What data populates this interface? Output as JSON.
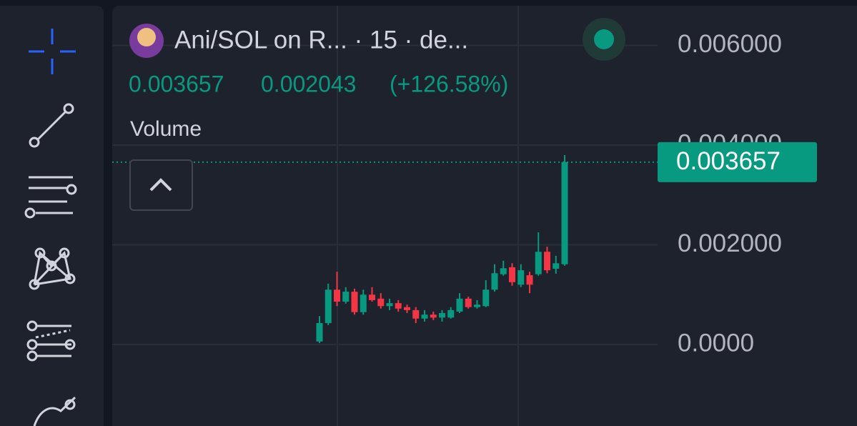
{
  "header": {
    "title": "Ani/SOL on R... · 15 · de...",
    "price": "0.003657",
    "change": "0.002043",
    "change_percent": "(+126.58%)",
    "indicator": "Volume"
  },
  "chart_data": {
    "type": "candlestick",
    "open": [
      6e-05,
      0.00043,
      0.0011,
      0.00086,
      0.00106,
      0.00065,
      0.001,
      0.00092,
      0.00077,
      0.00083,
      0.00075,
      0.00069,
      0.00052,
      0.0006,
      0.00054,
      0.00054,
      0.00066,
      0.00092,
      0.00075,
      0.00077,
      0.0011,
      0.00141,
      0.00155,
      0.0012,
      0.00139,
      0.00141,
      0.00186,
      0.00152,
      0.00161
    ],
    "high": [
      0.00057,
      0.00122,
      0.00146,
      0.00115,
      0.00112,
      0.0011,
      0.00115,
      0.00103,
      0.00092,
      0.00089,
      0.0008,
      0.00075,
      0.00069,
      0.00066,
      0.00069,
      0.00075,
      0.00103,
      0.00096,
      0.00089,
      0.00129,
      0.00161,
      0.00168,
      0.00163,
      0.00161,
      0.00146,
      0.00225,
      0.00196,
      0.00178,
      0.0038
    ],
    "low": [
      3e-05,
      0.00039,
      0.00077,
      0.00082,
      0.0006,
      0.0006,
      0.00086,
      0.00072,
      0.00069,
      0.00066,
      0.00063,
      0.00043,
      0.00046,
      0.00049,
      0.00046,
      0.00052,
      0.00063,
      0.00072,
      0.00072,
      0.00075,
      0.00106,
      0.00138,
      0.00118,
      0.00115,
      0.00103,
      0.00138,
      0.00143,
      0.00142,
      0.00158
    ],
    "close": [
      0.00043,
      0.0011,
      0.00086,
      0.00106,
      0.00065,
      0.001,
      0.00089,
      0.00077,
      0.00083,
      0.00072,
      0.00069,
      0.00052,
      0.0006,
      0.00054,
      0.00063,
      0.00069,
      0.00092,
      0.00075,
      0.0008,
      0.0011,
      0.00143,
      0.00153,
      0.00125,
      0.00149,
      0.0012,
      0.00186,
      0.00149,
      0.00163,
      0.003657
    ],
    "up_color": "#089981",
    "down_color": "#f23645",
    "last_price": 0.003657,
    "ylim": [
      -0.0016,
      0.0068
    ],
    "yticks": [
      {
        "value": 0,
        "label": "0.0000"
      },
      {
        "value": 0.002,
        "label": "0.002000"
      },
      {
        "value": 0.004,
        "label": "0.004000"
      },
      {
        "value": 0.006,
        "label": "0.006000"
      }
    ],
    "grid": true
  }
}
